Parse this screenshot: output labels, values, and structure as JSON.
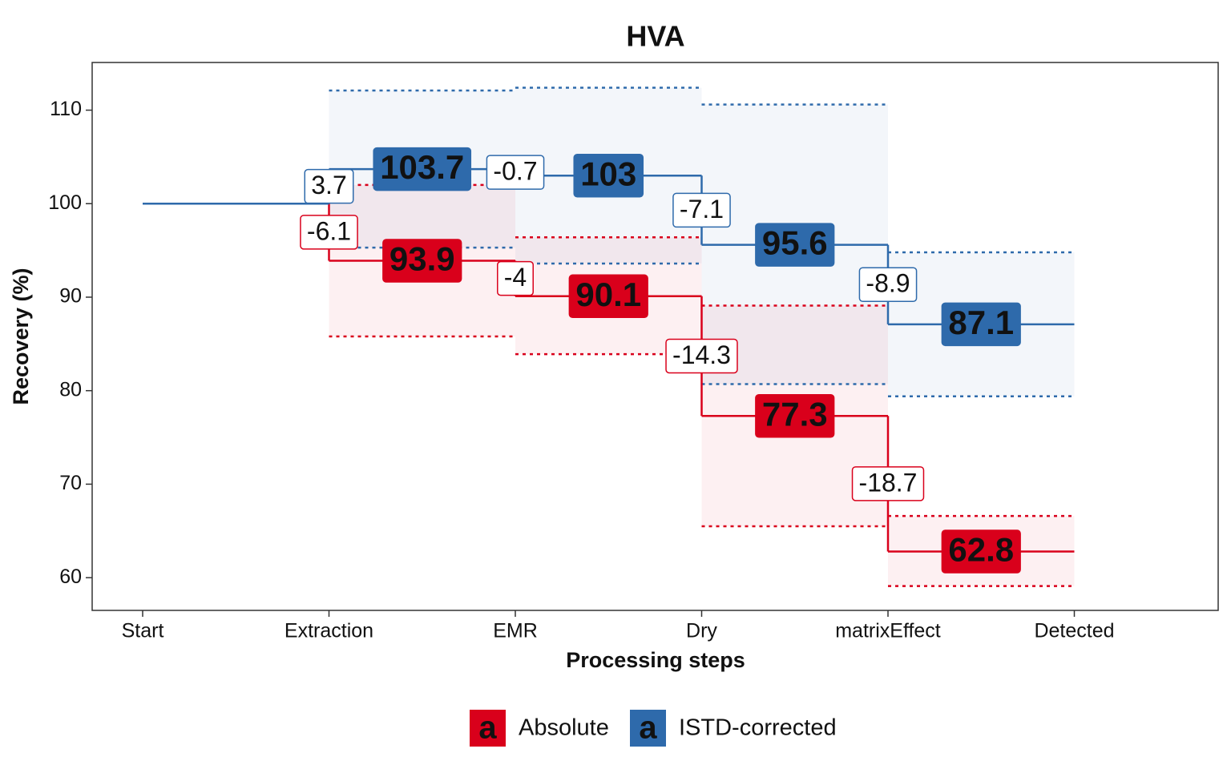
{
  "chart_data": {
    "type": "step",
    "title": "HVA",
    "x_label": "Processing steps",
    "y_label": "Recovery (%)",
    "categories": [
      "Start",
      "Extraction",
      "EMR",
      "Dry",
      "matrixEffect",
      "Detected"
    ],
    "ylim": [
      56.5,
      115.1
    ],
    "yticks": [
      60,
      70,
      80,
      90,
      100,
      110
    ],
    "legend_glyph": "a",
    "legend": "bottom",
    "series": [
      {
        "name": "Absolute",
        "color": "#d9001b",
        "values": [
          100,
          93.9,
          90.1,
          77.3,
          62.8,
          null
        ],
        "changes": [
          null,
          -6.1,
          -4,
          -14.3,
          -18.7,
          null
        ],
        "upper": [
          null,
          102,
          96.4,
          89.1,
          66.6,
          null
        ],
        "lower": [
          null,
          85.8,
          83.9,
          65.5,
          59.1,
          null
        ]
      },
      {
        "name": "ISTD-corrected",
        "color": "#2e6aab",
        "values": [
          100,
          103.7,
          103,
          95.6,
          87.1,
          null
        ],
        "changes": [
          null,
          3.7,
          -0.7,
          -7.1,
          -8.9,
          null
        ],
        "upper": [
          null,
          112.1,
          112.4,
          110.6,
          94.8,
          null
        ],
        "lower": [
          null,
          95.3,
          93.6,
          80.7,
          79.4,
          null
        ]
      }
    ]
  }
}
